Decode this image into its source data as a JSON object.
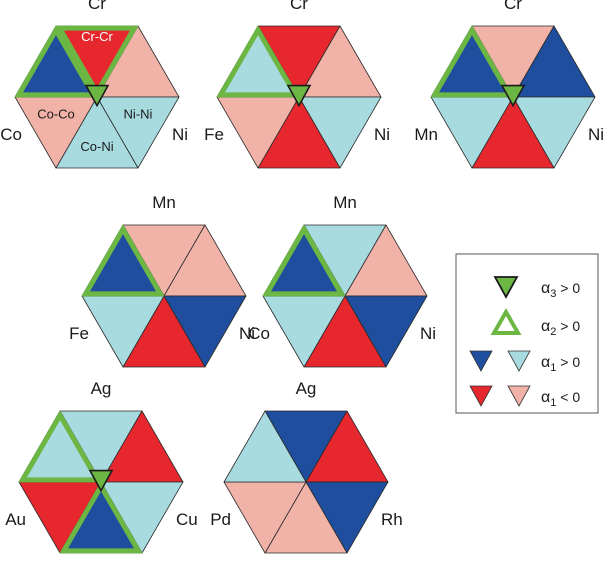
{
  "colors": {
    "dark_blue": "#1f4e9e",
    "light_blue": "#a8dbe0",
    "red": "#e6272d",
    "pink": "#f1b2a8",
    "green": "#6cb744",
    "edge": "#2b2b2b"
  },
  "hexagons": [
    {
      "top": "Cr",
      "left": "Co",
      "right": "Ni",
      "inner_labels": [
        "Cr-Cr",
        "Co-Co",
        "Ni-Ni",
        "Co-Ni"
      ],
      "triangles": [
        "red",
        "pink",
        "light_blue",
        "light_blue",
        "pink",
        "dark_blue"
      ],
      "alpha2_outlines": [
        true,
        false,
        false,
        false,
        false,
        true
      ],
      "alpha3_marker": true
    },
    {
      "top": "Cr",
      "left": "Fe",
      "right": "Ni",
      "triangles": [
        "red",
        "pink",
        "light_blue",
        "red",
        "pink",
        "light_blue"
      ],
      "alpha2_outlines": [
        false,
        false,
        false,
        false,
        false,
        true
      ],
      "alpha3_marker": true
    },
    {
      "top": "Cr",
      "left": "Mn",
      "right": "Ni",
      "triangles": [
        "pink",
        "dark_blue",
        "light_blue",
        "red",
        "light_blue",
        "dark_blue"
      ],
      "alpha2_outlines": [
        false,
        false,
        false,
        false,
        false,
        true
      ],
      "alpha3_marker": true
    },
    {
      "top": "Mn",
      "left": "Fe",
      "right": "Ni",
      "triangles": [
        "pink",
        "pink",
        "dark_blue",
        "red",
        "light_blue",
        "dark_blue"
      ],
      "alpha2_outlines": [
        false,
        false,
        false,
        false,
        false,
        true
      ],
      "alpha3_marker": false
    },
    {
      "top": "Mn",
      "left": "Co",
      "right": "Ni",
      "triangles": [
        "light_blue",
        "pink",
        "dark_blue",
        "red",
        "light_blue",
        "dark_blue"
      ],
      "alpha2_outlines": [
        false,
        false,
        false,
        false,
        false,
        true
      ],
      "alpha3_marker": false
    },
    {
      "top": "Ag",
      "left": "Au",
      "right": "Cu",
      "triangles": [
        "light_blue",
        "red",
        "light_blue",
        "dark_blue",
        "red",
        "light_blue"
      ],
      "alpha2_outlines": [
        false,
        false,
        false,
        true,
        false,
        true
      ],
      "alpha3_marker": true
    },
    {
      "top": "Ag",
      "left": "Pd",
      "right": "Rh",
      "triangles": [
        "dark_blue",
        "red",
        "dark_blue",
        "pink",
        "pink",
        "light_blue"
      ],
      "alpha2_outlines": [
        false,
        false,
        false,
        false,
        false,
        false
      ],
      "alpha3_marker": false
    }
  ],
  "legend": {
    "rows": [
      {
        "sub": "3",
        "relation": " > 0"
      },
      {
        "sub": "2",
        "relation": " > 0"
      },
      {
        "sub": "1",
        "relation": " > 0"
      },
      {
        "sub": "1",
        "relation": " < 0"
      }
    ]
  }
}
